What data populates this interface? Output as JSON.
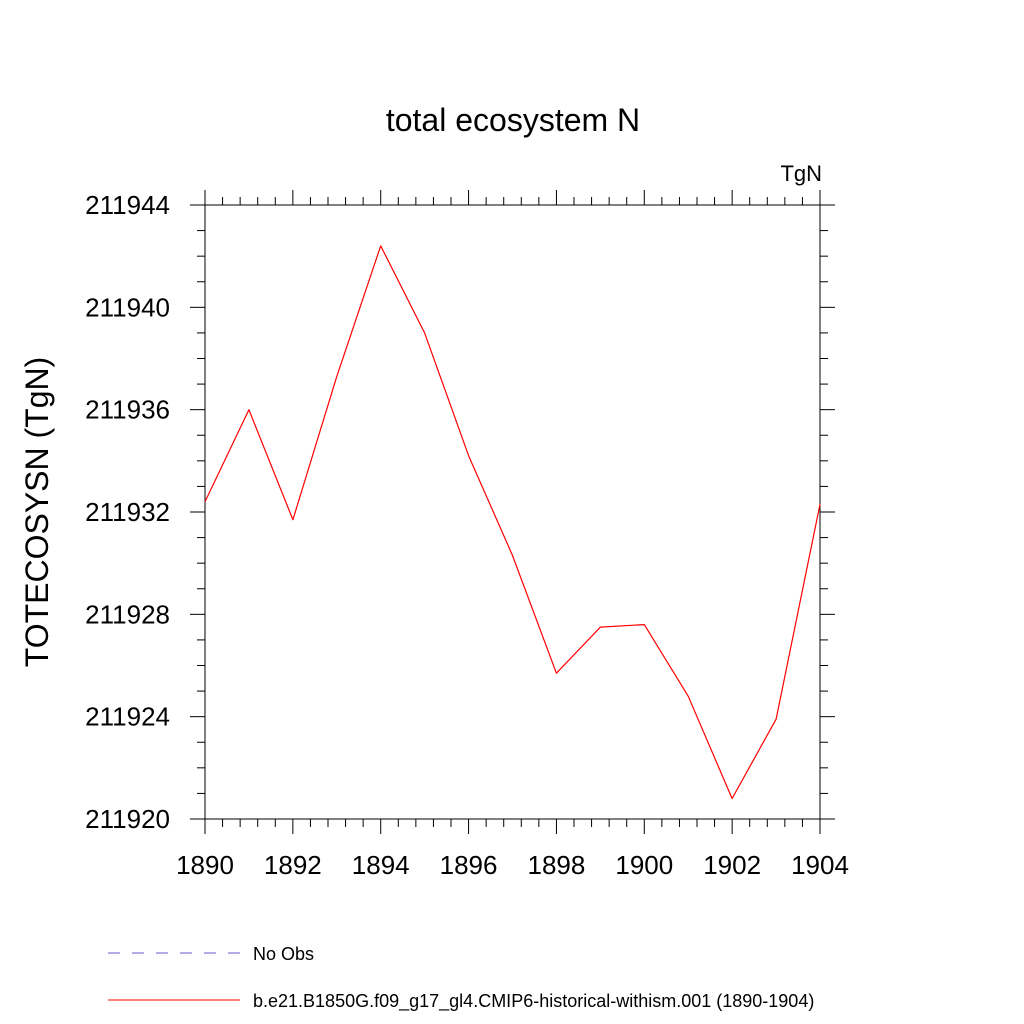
{
  "chart_data": {
    "type": "line",
    "title": "total ecosystem N",
    "units_label": "TgN",
    "ylabel": "TOTECOSYSN  (TgN)",
    "xlabel": "",
    "xlim": [
      1890,
      1904
    ],
    "ylim": [
      211920,
      211944
    ],
    "x_ticks": [
      1890,
      1892,
      1894,
      1896,
      1898,
      1900,
      1902,
      1904
    ],
    "x_tick_labels": [
      "1890",
      "1892",
      "1894",
      "1896",
      "1898",
      "1900",
      "1902",
      "1904"
    ],
    "y_ticks": [
      211920,
      211924,
      211928,
      211932,
      211936,
      211940,
      211944
    ],
    "y_tick_labels": [
      "211920",
      "211924",
      "211928",
      "211932",
      "211936",
      "211940",
      "211944"
    ],
    "grid": false,
    "legend_position": "bottom",
    "series": [
      {
        "name": "b.e21.B1850G.f09_g17_gl4.CMIP6-historical-withism.001 (1890-1904)",
        "color": "#ff0000",
        "style": "solid",
        "x": [
          1890,
          1891,
          1892,
          1893,
          1894,
          1895,
          1896,
          1897,
          1898,
          1899,
          1900,
          1901,
          1902,
          1903,
          1904
        ],
        "values": [
          211932.4,
          211936.0,
          211931.7,
          211937.3,
          211942.4,
          211939.0,
          211934.2,
          211930.3,
          211925.7,
          211927.5,
          211927.6,
          211924.8,
          211920.8,
          211923.9,
          211932.3
        ]
      }
    ],
    "legend": [
      {
        "label": "No Obs",
        "color": "#6a5acd",
        "style": "dashed"
      },
      {
        "label": "b.e21.B1850G.f09_g17_gl4.CMIP6-historical-withism.001 (1890-1904)",
        "color": "#ff0000",
        "style": "solid"
      }
    ]
  }
}
